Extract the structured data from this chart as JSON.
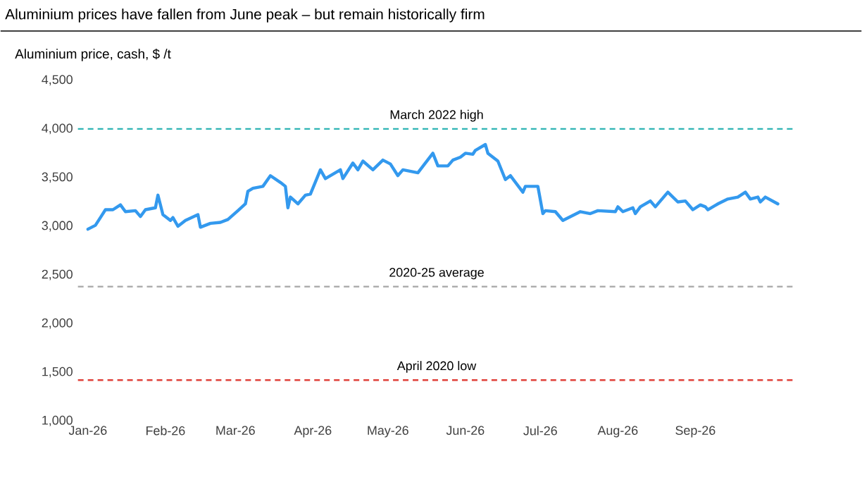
{
  "chart_data": {
    "type": "line",
    "title": "Aluminium prices have fallen from June peak – but remain historically firm",
    "ylabel": "Aluminium price, cash, $ /t",
    "x": [
      "2026-01-01",
      "2026-01-04",
      "2026-01-06",
      "2026-01-08",
      "2026-01-11",
      "2026-01-14",
      "2026-01-16",
      "2026-01-20",
      "2026-01-22",
      "2026-01-24",
      "2026-01-28",
      "2026-01-29",
      "2026-01-31",
      "2026-02-03",
      "2026-02-04",
      "2026-02-06",
      "2026-02-09",
      "2026-02-14",
      "2026-02-15",
      "2026-02-19",
      "2026-02-23",
      "2026-02-26",
      "2026-03-02",
      "2026-03-05",
      "2026-03-06",
      "2026-03-08",
      "2026-03-12",
      "2026-03-15",
      "2026-03-19",
      "2026-03-21",
      "2026-03-22",
      "2026-03-23",
      "2026-03-26",
      "2026-03-29",
      "2026-03-31",
      "2026-04-04",
      "2026-04-06",
      "2026-04-12",
      "2026-04-13",
      "2026-04-17",
      "2026-04-19",
      "2026-04-21",
      "2026-04-25",
      "2026-04-29",
      "2026-05-02",
      "2026-05-05",
      "2026-05-07",
      "2026-05-13",
      "2026-05-16",
      "2026-05-19",
      "2026-05-21",
      "2026-05-25",
      "2026-05-27",
      "2026-05-30",
      "2026-06-01",
      "2026-06-04",
      "2026-06-05",
      "2026-06-09",
      "2026-06-10",
      "2026-06-14",
      "2026-06-17",
      "2026-06-19",
      "2026-06-24",
      "2026-06-25",
      "2026-06-30",
      "2026-07-02",
      "2026-07-03",
      "2026-07-07",
      "2026-07-10",
      "2026-07-17",
      "2026-07-21",
      "2026-07-24",
      "2026-07-31",
      "2026-08-01",
      "2026-08-03",
      "2026-08-07",
      "2026-08-08",
      "2026-08-10",
      "2026-08-14",
      "2026-08-16",
      "2026-08-21",
      "2026-08-25",
      "2026-08-28",
      "2026-08-31",
      "2026-09-03",
      "2026-09-05",
      "2026-09-06",
      "2026-09-10",
      "2026-09-14",
      "2026-09-18",
      "2026-09-21",
      "2026-09-23",
      "2026-09-26",
      "2026-09-27",
      "2026-09-29",
      "2026-10-04"
    ],
    "series": [
      {
        "color": "#3399ee",
        "values": [
          2970,
          3010,
          3090,
          3170,
          3170,
          3220,
          3150,
          3160,
          3100,
          3170,
          3190,
          3320,
          3120,
          3060,
          3090,
          3000,
          3060,
          3120,
          2990,
          3030,
          3040,
          3070,
          3160,
          3230,
          3360,
          3390,
          3410,
          3520,
          3450,
          3410,
          3190,
          3300,
          3230,
          3320,
          3330,
          3580,
          3490,
          3580,
          3490,
          3650,
          3580,
          3670,
          3580,
          3680,
          3640,
          3520,
          3580,
          3550,
          3650,
          3750,
          3620,
          3620,
          3680,
          3710,
          3750,
          3740,
          3780,
          3840,
          3750,
          3670,
          3480,
          3520,
          3350,
          3410,
          3410,
          3130,
          3160,
          3150,
          3060,
          3150,
          3130,
          3160,
          3150,
          3200,
          3150,
          3190,
          3130,
          3200,
          3260,
          3200,
          3350,
          3250,
          3260,
          3170,
          3220,
          3200,
          3170,
          3230,
          3280,
          3300,
          3350,
          3280,
          3300,
          3250,
          3300,
          3230
        ]
      }
    ],
    "xlim": [
      "2025-12-28",
      "2026-10-11"
    ],
    "xticks": [
      {
        "value": "2026-01-01",
        "label": "Jan-26"
      },
      {
        "value": "2026-02-01",
        "label": "Feb-26"
      },
      {
        "value": "2026-03-01",
        "label": "Mar-26"
      },
      {
        "value": "2026-04-01",
        "label": "Apr-26"
      },
      {
        "value": "2026-05-01",
        "label": "May-26"
      },
      {
        "value": "2026-06-01",
        "label": "Jun-26"
      },
      {
        "value": "2026-07-01",
        "label": "Jul-26"
      },
      {
        "value": "2026-08-01",
        "label": "Aug-26"
      },
      {
        "value": "2026-09-01",
        "label": "Sep-26"
      }
    ],
    "ylim": [
      1000,
      4500
    ],
    "yticks": [
      {
        "value": 1000,
        "label": "1,000"
      },
      {
        "value": 1500,
        "label": "1,500"
      },
      {
        "value": 2000,
        "label": "2,000"
      },
      {
        "value": 2500,
        "label": "2,500"
      },
      {
        "value": 3000,
        "label": "3,000"
      },
      {
        "value": 3500,
        "label": "3,500"
      },
      {
        "value": 4000,
        "label": "4,000"
      },
      {
        "value": 4500,
        "label": "4,500"
      }
    ],
    "ref_lines": [
      {
        "axis": "y",
        "value": 4000,
        "label": "March 2022 high",
        "color": "#2fb4b4",
        "line_style": "dashed"
      },
      {
        "axis": "y",
        "value": 2380,
        "label": "2020-25 average",
        "color": "#a6a6a6",
        "line_style": "dashed"
      },
      {
        "axis": "y",
        "value": 1420,
        "label": "April 2020 low",
        "color": "#e0403a",
        "line_style": "dashed"
      }
    ]
  }
}
